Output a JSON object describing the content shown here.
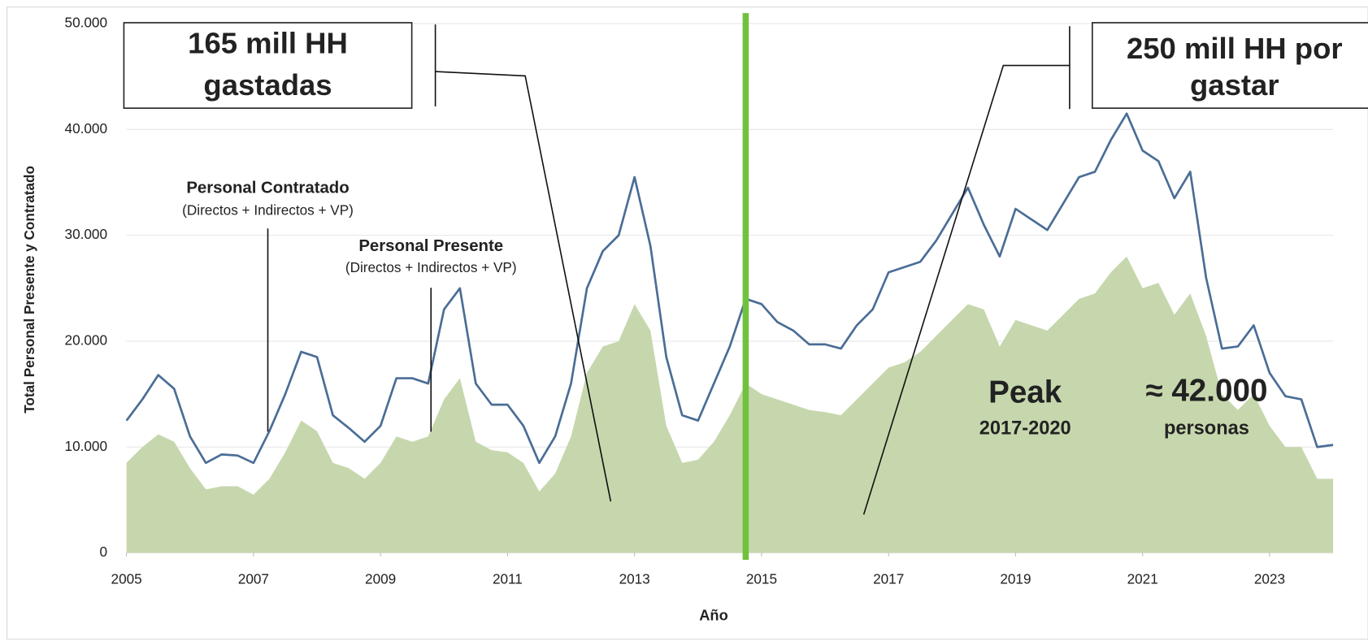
{
  "chart_data": {
    "type": "line",
    "xlabel": "Año",
    "ylabel": "Total Personal Presente y Contratado",
    "x": [
      2005,
      2005.25,
      2005.5,
      2005.75,
      2006,
      2006.25,
      2006.5,
      2006.75,
      2007,
      2007.25,
      2007.5,
      2007.75,
      2008,
      2008.25,
      2008.5,
      2008.75,
      2009,
      2009.25,
      2009.5,
      2009.75,
      2010,
      2010.25,
      2010.5,
      2010.75,
      2011,
      2011.25,
      2011.5,
      2011.75,
      2012,
      2012.25,
      2012.5,
      2012.75,
      2013,
      2013.25,
      2013.5,
      2013.75,
      2014,
      2014.25,
      2014.5,
      2014.75,
      2015,
      2015.25,
      2015.5,
      2015.75,
      2016,
      2016.25,
      2016.5,
      2016.75,
      2017,
      2017.25,
      2017.5,
      2017.75,
      2018,
      2018.25,
      2018.5,
      2018.75,
      2019,
      2019.25,
      2019.5,
      2019.75,
      2020,
      2020.25,
      2020.5,
      2020.75,
      2021,
      2021.25,
      2021.5,
      2021.75,
      2022,
      2022.25,
      2022.5,
      2022.75,
      2023,
      2023.25,
      2023.5,
      2023.75,
      2024
    ],
    "series": [
      {
        "name": "Personal Presente",
        "subtitle": "(Directos + Indirectos + VP)",
        "style": "area",
        "color": "#c6d7ad",
        "label_color": "#4b5fae",
        "values": [
          8500,
          10000,
          11200,
          10500,
          8000,
          6000,
          6300,
          6300,
          5500,
          7000,
          9500,
          12500,
          11500,
          8500,
          8000,
          7000,
          8500,
          11000,
          10500,
          11000,
          14500,
          16500,
          10500,
          9700,
          9500,
          8500,
          5800,
          7500,
          11000,
          17000,
          19500,
          20000,
          23500,
          21000,
          12000,
          8500,
          8800,
          10500,
          13000,
          16000,
          15000,
          14500,
          14000,
          13500,
          13300,
          13000,
          14500,
          16000,
          17500,
          18000,
          19000,
          20500,
          22000,
          23500,
          23000,
          19500,
          22000,
          21500,
          21000,
          22500,
          24000,
          24500,
          26500,
          28000,
          25000,
          25500,
          22500,
          24500,
          20500,
          15000,
          13500,
          15000,
          12000,
          10000,
          10000,
          7000,
          7000
        ]
      },
      {
        "name": "Personal Contratado",
        "subtitle": "(Directos + Indirectos + VP)",
        "style": "line",
        "color": "#4a6d96",
        "label_color": "#0a72c0",
        "values": [
          12500,
          14500,
          16800,
          15500,
          11000,
          8500,
          9300,
          9200,
          8500,
          11500,
          15000,
          19000,
          18500,
          13000,
          11800,
          10500,
          12000,
          16500,
          16500,
          16000,
          23000,
          25000,
          16000,
          14000,
          14000,
          12000,
          8500,
          11000,
          16000,
          25000,
          28500,
          30000,
          35500,
          29000,
          18500,
          13000,
          12500,
          16000,
          19500,
          24000,
          23500,
          21800,
          21000,
          19700,
          19700,
          19300,
          21500,
          23000,
          26500,
          27000,
          27500,
          29500,
          32000,
          34500,
          31000,
          28000,
          32500,
          31500,
          30500,
          33000,
          35500,
          36000,
          39000,
          41500,
          38000,
          37000,
          33500,
          36000,
          26000,
          19300,
          19500,
          21500,
          17000,
          14800,
          14500,
          10000,
          10200
        ]
      }
    ],
    "vline": {
      "x": 2014.75,
      "color": "#6fc23c"
    },
    "xlim": [
      2005,
      2024
    ],
    "xticks": [
      2005,
      2007,
      2009,
      2011,
      2013,
      2015,
      2017,
      2019,
      2021,
      2023
    ],
    "ylim": [
      0,
      50000
    ],
    "yticks": [
      0,
      {
        "value": 10000,
        "label": "10.000"
      },
      {
        "value": 20000,
        "label": "20.000"
      },
      {
        "value": 30000,
        "label": "30.000"
      },
      {
        "value": 40000,
        "label": "40.000"
      },
      {
        "value": 50000,
        "label": "50.000"
      }
    ],
    "grid": true,
    "annotations": {
      "spent": [
        "165 mill HH",
        "gastadas"
      ],
      "to_spend": [
        "250 mill HH por",
        "gastar"
      ],
      "peak": [
        "Peak",
        "2017-2020"
      ],
      "peak_value": [
        "≈ 42.000",
        "personas"
      ]
    }
  }
}
